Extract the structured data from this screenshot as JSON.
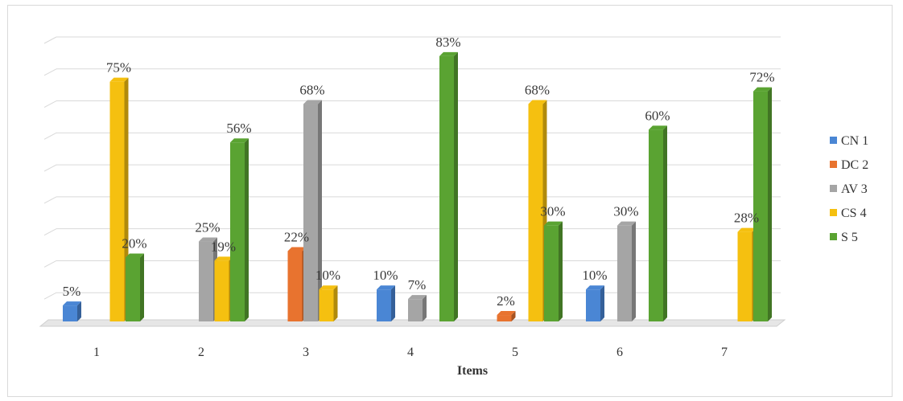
{
  "chart_data": {
    "type": "bar",
    "title": "",
    "xlabel": "Items",
    "ylabel": "",
    "categories": [
      "1",
      "2",
      "3",
      "4",
      "5",
      "6",
      "7"
    ],
    "ylim": [
      0,
      90
    ],
    "grid": true,
    "legend_position": "right",
    "value_format": "percent",
    "series": [
      {
        "name": "CN 1",
        "color": "#4a86d4",
        "values": [
          5,
          null,
          null,
          10,
          null,
          10,
          null
        ]
      },
      {
        "name": "DC 2",
        "color": "#e8732f",
        "values": [
          null,
          null,
          22,
          null,
          2,
          null,
          null
        ]
      },
      {
        "name": "AV 3",
        "color": "#a5a5a5",
        "values": [
          null,
          25,
          68,
          7,
          null,
          30,
          null
        ]
      },
      {
        "name": "CS 4",
        "color": "#f5c010",
        "values": [
          75,
          19,
          10,
          null,
          68,
          null,
          28
        ]
      },
      {
        "name": "S 5",
        "color": "#5aa332",
        "values": [
          20,
          56,
          null,
          83,
          30,
          60,
          72
        ]
      }
    ]
  }
}
